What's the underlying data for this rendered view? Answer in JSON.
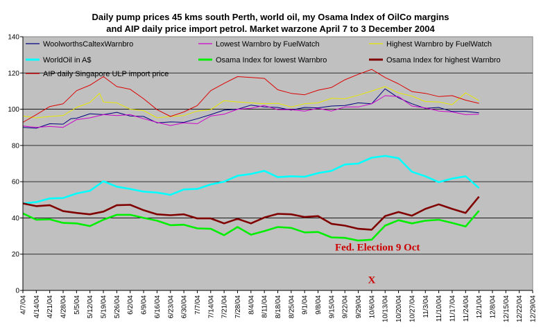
{
  "chart_data": {
    "type": "line",
    "title_lines": [
      "Daily pump prices 45 kms south Perth, world oil, my Osama Index of OilCo margins",
      "and AIP daily price import petrol.  Market warzone April 7 to 3 December 2004"
    ],
    "xlabel": "",
    "ylabel": "",
    "ylim": [
      0,
      140
    ],
    "yticks": [
      0,
      20,
      40,
      60,
      80,
      100,
      120,
      140
    ],
    "x_tick_labels": [
      "4/7/04",
      "4/14/04",
      "4/21/04",
      "4/28/04",
      "5/5/04",
      "5/12/04",
      "5/19/04",
      "5/26/04",
      "6/2/04",
      "6/9/04",
      "6/16/04",
      "6/23/04",
      "6/30/04",
      "7/7/04",
      "7/14/04",
      "7/21/04",
      "7/28/04",
      "8/4/04",
      "8/11/04",
      "8/18/04",
      "8/25/04",
      "9/1/04",
      "9/8/04",
      "9/15/04",
      "9/22/04",
      "9/29/04",
      "10/6/04",
      "10/13/04",
      "10/20/04",
      "10/27/04",
      "11/3/04",
      "11/10/04",
      "11/17/04",
      "11/24/04",
      "12/1/04",
      "12/8/04",
      "12/15/04",
      "12/22/04",
      "12/29/04"
    ],
    "grid": "horizontal",
    "legend_position": "top",
    "plot_background": "#c0c0c0",
    "series": [
      {
        "name": "WoolworthsCaltexWarnbro",
        "color": "#000080",
        "width": 1,
        "points": [
          [
            0,
            90
          ],
          [
            7,
            90
          ],
          [
            14,
            91
          ],
          [
            21,
            92
          ],
          [
            25,
            94
          ],
          [
            28,
            95
          ],
          [
            35,
            97
          ],
          [
            42,
            98
          ],
          [
            49,
            98
          ],
          [
            56,
            97
          ],
          [
            63,
            96
          ],
          [
            70,
            93
          ],
          [
            77,
            92
          ],
          [
            84,
            93
          ],
          [
            91,
            94
          ],
          [
            98,
            97
          ],
          [
            105,
            99
          ],
          [
            112,
            101
          ],
          [
            119,
            102
          ],
          [
            126,
            102
          ],
          [
            133,
            101
          ],
          [
            140,
            100
          ],
          [
            147,
            100
          ],
          [
            154,
            101
          ],
          [
            161,
            101
          ],
          [
            168,
            102
          ],
          [
            175,
            103
          ],
          [
            182,
            104
          ],
          [
            189,
            111
          ],
          [
            196,
            107
          ],
          [
            203,
            103
          ],
          [
            210,
            101
          ],
          [
            217,
            100
          ],
          [
            224,
            99
          ],
          [
            231,
            98
          ],
          [
            238,
            98
          ]
        ]
      },
      {
        "name": "Lowest Warnbro by FuelWatch",
        "color": "#cc00cc",
        "width": 1,
        "points": [
          [
            0,
            90
          ],
          [
            7,
            90
          ],
          [
            14,
            90
          ],
          [
            21,
            91
          ],
          [
            28,
            94
          ],
          [
            35,
            96
          ],
          [
            42,
            97
          ],
          [
            49,
            97
          ],
          [
            56,
            96
          ],
          [
            63,
            95
          ],
          [
            70,
            92
          ],
          [
            77,
            91
          ],
          [
            84,
            92
          ],
          [
            91,
            93
          ],
          [
            98,
            96
          ],
          [
            105,
            98
          ],
          [
            112,
            100
          ],
          [
            119,
            101
          ],
          [
            126,
            101
          ],
          [
            133,
            100
          ],
          [
            140,
            99
          ],
          [
            147,
            99
          ],
          [
            154,
            100
          ],
          [
            161,
            100
          ],
          [
            168,
            101
          ],
          [
            175,
            102
          ],
          [
            182,
            103
          ],
          [
            189,
            108
          ],
          [
            196,
            106
          ],
          [
            203,
            102
          ],
          [
            210,
            100
          ],
          [
            217,
            99
          ],
          [
            224,
            98
          ],
          [
            231,
            98
          ],
          [
            238,
            97
          ]
        ]
      },
      {
        "name": "Highest Warnbro by FuelWatch",
        "color": "#e8e800",
        "width": 1,
        "points": [
          [
            0,
            96
          ],
          [
            7,
            96
          ],
          [
            14,
            96
          ],
          [
            21,
            97
          ],
          [
            28,
            100
          ],
          [
            35,
            104
          ],
          [
            40,
            108
          ],
          [
            42,
            104
          ],
          [
            49,
            103
          ],
          [
            56,
            101
          ],
          [
            63,
            99
          ],
          [
            70,
            96
          ],
          [
            77,
            96
          ],
          [
            84,
            97
          ],
          [
            91,
            98
          ],
          [
            98,
            100
          ],
          [
            105,
            104
          ],
          [
            112,
            104
          ],
          [
            119,
            103
          ],
          [
            126,
            104
          ],
          [
            133,
            103
          ],
          [
            140,
            102
          ],
          [
            147,
            103
          ],
          [
            154,
            104
          ],
          [
            161,
            105
          ],
          [
            168,
            106
          ],
          [
            175,
            107
          ],
          [
            182,
            110
          ],
          [
            189,
            112
          ],
          [
            196,
            110
          ],
          [
            203,
            107
          ],
          [
            210,
            105
          ],
          [
            217,
            104
          ],
          [
            224,
            103
          ],
          [
            231,
            108
          ],
          [
            238,
            105
          ]
        ]
      },
      {
        "name": "WorldOil in A$",
        "color": "#00ffff",
        "width": 2.6,
        "points": [
          [
            0,
            47
          ],
          [
            7,
            49
          ],
          [
            14,
            50
          ],
          [
            21,
            51
          ],
          [
            28,
            53
          ],
          [
            35,
            56
          ],
          [
            42,
            60
          ],
          [
            49,
            58
          ],
          [
            56,
            56
          ],
          [
            63,
            55
          ],
          [
            70,
            53
          ],
          [
            77,
            53
          ],
          [
            84,
            55
          ],
          [
            91,
            56
          ],
          [
            98,
            58
          ],
          [
            105,
            61
          ],
          [
            112,
            63
          ],
          [
            119,
            65
          ],
          [
            126,
            66
          ],
          [
            133,
            63
          ],
          [
            140,
            62
          ],
          [
            147,
            63
          ],
          [
            154,
            64
          ],
          [
            161,
            66
          ],
          [
            168,
            69
          ],
          [
            175,
            71
          ],
          [
            182,
            73
          ],
          [
            189,
            75
          ],
          [
            196,
            73
          ],
          [
            203,
            66
          ],
          [
            210,
            62
          ],
          [
            217,
            60
          ],
          [
            224,
            61
          ],
          [
            231,
            63
          ],
          [
            238,
            56
          ]
        ]
      },
      {
        "name": "Osama Index for lowest Warnbro",
        "color": "#00ee00",
        "width": 2.6,
        "points": [
          [
            0,
            42
          ],
          [
            7,
            40
          ],
          [
            14,
            39
          ],
          [
            21,
            38
          ],
          [
            28,
            37
          ],
          [
            35,
            36
          ],
          [
            42,
            38
          ],
          [
            49,
            42
          ],
          [
            56,
            41
          ],
          [
            63,
            40
          ],
          [
            70,
            38
          ],
          [
            77,
            37
          ],
          [
            84,
            36
          ],
          [
            91,
            35
          ],
          [
            98,
            34
          ],
          [
            105,
            31
          ],
          [
            112,
            34
          ],
          [
            119,
            31
          ],
          [
            126,
            32
          ],
          [
            133,
            35
          ],
          [
            140,
            34
          ],
          [
            147,
            33
          ],
          [
            154,
            32
          ],
          [
            161,
            30
          ],
          [
            168,
            29
          ],
          [
            175,
            28
          ],
          [
            182,
            27
          ],
          [
            189,
            36
          ],
          [
            196,
            38
          ],
          [
            203,
            37
          ],
          [
            210,
            38
          ],
          [
            217,
            40
          ],
          [
            224,
            37
          ],
          [
            231,
            36
          ],
          [
            238,
            44
          ]
        ]
      },
      {
        "name": "Osama Index for highest Warnbro",
        "color": "#800000",
        "width": 2.6,
        "points": [
          [
            0,
            48
          ],
          [
            7,
            47
          ],
          [
            14,
            46
          ],
          [
            21,
            44
          ],
          [
            28,
            42
          ],
          [
            35,
            42
          ],
          [
            42,
            43
          ],
          [
            49,
            48
          ],
          [
            56,
            47
          ],
          [
            63,
            45
          ],
          [
            70,
            42
          ],
          [
            77,
            42
          ],
          [
            84,
            41
          ],
          [
            91,
            40
          ],
          [
            98,
            39
          ],
          [
            105,
            37
          ],
          [
            112,
            39
          ],
          [
            119,
            38
          ],
          [
            126,
            40
          ],
          [
            133,
            43
          ],
          [
            140,
            42
          ],
          [
            147,
            41
          ],
          [
            154,
            40
          ],
          [
            161,
            37
          ],
          [
            168,
            35
          ],
          [
            175,
            34
          ],
          [
            182,
            33
          ],
          [
            189,
            42
          ],
          [
            196,
            43
          ],
          [
            203,
            42
          ],
          [
            210,
            45
          ],
          [
            217,
            48
          ],
          [
            224,
            44
          ],
          [
            231,
            43
          ],
          [
            238,
            51
          ]
        ]
      },
      {
        "name": "AIP daily Singapore ULP import price",
        "color": "#dd0000",
        "width": 1,
        "points": [
          [
            0,
            92
          ],
          [
            7,
            97
          ],
          [
            14,
            101
          ],
          [
            21,
            104
          ],
          [
            28,
            110
          ],
          [
            35,
            114
          ],
          [
            42,
            118
          ],
          [
            49,
            113
          ],
          [
            56,
            110
          ],
          [
            63,
            106
          ],
          [
            70,
            99
          ],
          [
            77,
            96
          ],
          [
            84,
            98
          ],
          [
            91,
            103
          ],
          [
            98,
            110
          ],
          [
            105,
            115
          ],
          [
            112,
            118
          ],
          [
            119,
            118
          ],
          [
            126,
            116
          ],
          [
            133,
            111
          ],
          [
            140,
            108
          ],
          [
            147,
            108
          ],
          [
            154,
            110
          ],
          [
            161,
            113
          ],
          [
            168,
            116
          ],
          [
            175,
            120
          ],
          [
            182,
            122
          ],
          [
            189,
            118
          ],
          [
            196,
            113
          ],
          [
            203,
            110
          ],
          [
            210,
            108
          ],
          [
            217,
            107
          ],
          [
            224,
            107
          ],
          [
            231,
            106
          ],
          [
            238,
            103
          ]
        ]
      }
    ],
    "annotations": [
      {
        "text": "Fed. Election 9 Oct",
        "x": 185,
        "y": 22
      },
      {
        "text": "X",
        "x": 182,
        "y": 4
      }
    ]
  }
}
